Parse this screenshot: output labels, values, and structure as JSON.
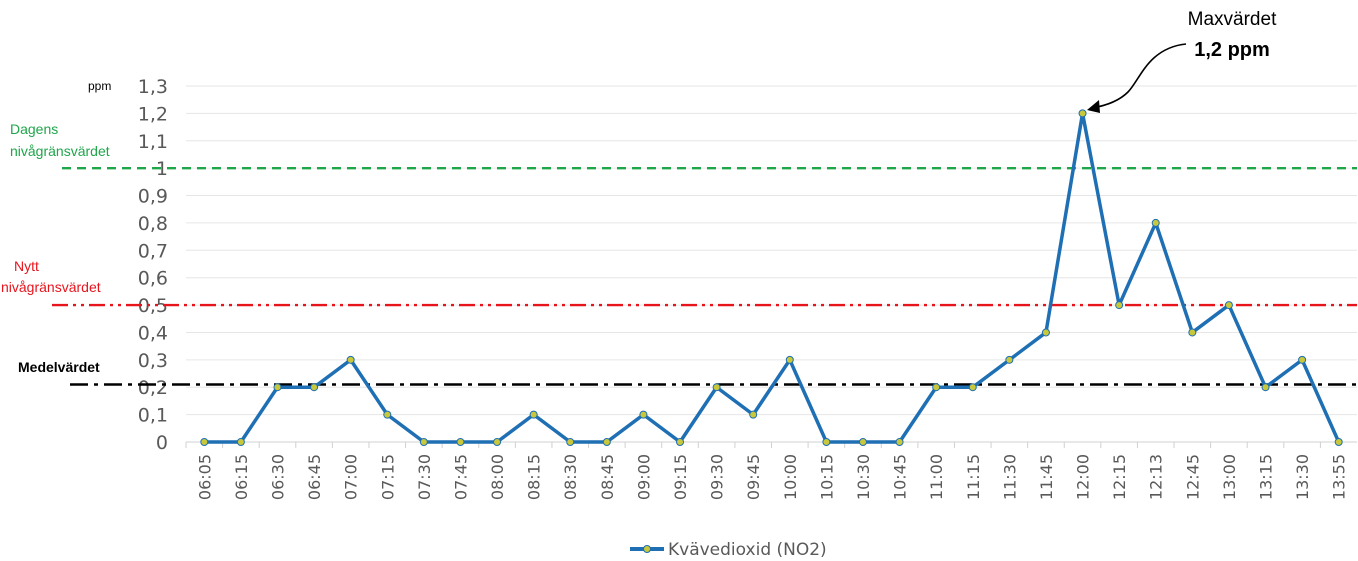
{
  "chart_data": {
    "type": "line",
    "y_unit": "ppm",
    "ylim": [
      0,
      1.3
    ],
    "yticks": [
      "0",
      "0,1",
      "0,2",
      "0,3",
      "0,4",
      "0,5",
      "0,6",
      "0,7",
      "0,8",
      "0,9",
      "1",
      "1,1",
      "1,2",
      "1,3"
    ],
    "grid": true,
    "legend_position": "bottom-center",
    "categories": [
      "06:05",
      "06:15",
      "06:30",
      "06:45",
      "07:00",
      "07:15",
      "07:30",
      "07:45",
      "08:00",
      "08:15",
      "08:30",
      "08:45",
      "09:00",
      "09:15",
      "09:30",
      "09:45",
      "10:00",
      "10:15",
      "10:30",
      "10:45",
      "11:00",
      "11:15",
      "11:30",
      "11:45",
      "12:00",
      "12:15",
      "12:13",
      "12:45",
      "13:00",
      "13:15",
      "13:30",
      "13:55"
    ],
    "series": [
      {
        "name": "Kvävedioxid (NO2)",
        "color": "#1f6fb4",
        "values": [
          0,
          0,
          0.2,
          0.2,
          0.3,
          0.1,
          0,
          0,
          0,
          0.1,
          0,
          0,
          0.1,
          0,
          0.2,
          0.1,
          0.3,
          0,
          0,
          0,
          0.2,
          0.2,
          0.3,
          0.4,
          1.2,
          0.5,
          0.8,
          0.4,
          0.5,
          0.2,
          0.3,
          0
        ]
      }
    ],
    "reference_lines": [
      {
        "label_line1": "Dagens",
        "label_line2": "nivågränsvärdet",
        "value": 1.0,
        "color": "#1fa64a"
      },
      {
        "label_line1": "Nytt",
        "label_line2": "nivågränsvärdet",
        "value": 0.5,
        "color": "#e8141c"
      },
      {
        "label": "Medelvärdet",
        "value": 0.21,
        "color": "#000000"
      }
    ],
    "annotation": {
      "line1": "Maxvärdet",
      "line2": "1,2 ppm",
      "category": "12:00",
      "value": 1.2
    }
  }
}
